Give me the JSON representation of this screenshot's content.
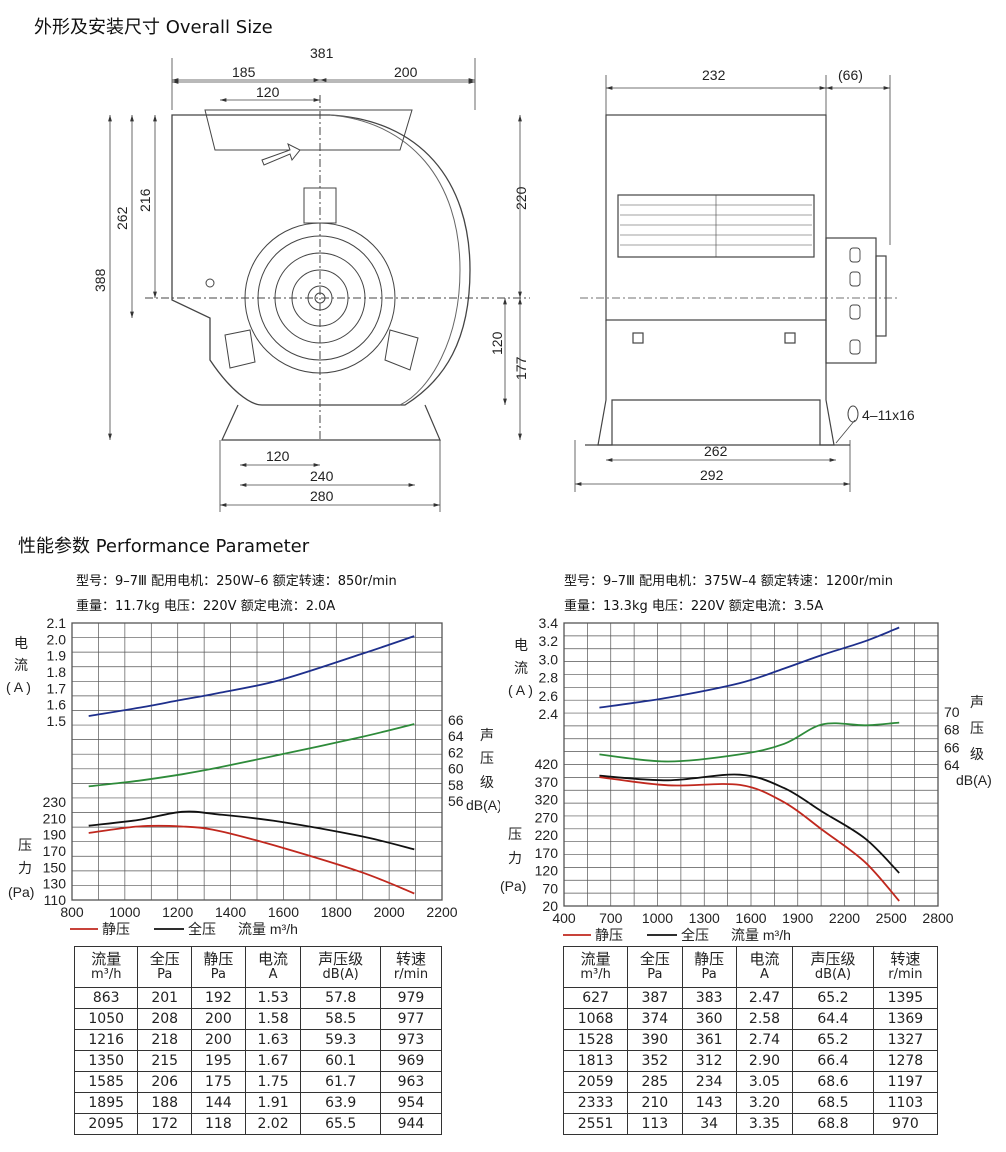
{
  "sections": {
    "overall_title": "外形及安装尺寸  Overall Size",
    "performance_title": "性能参数 Performance Parameter"
  },
  "drawing": {
    "front": {
      "dims": [
        "381",
        "185",
        "200",
        "120",
        "262",
        "216",
        "388",
        "220",
        "120",
        "177",
        "120",
        "240",
        "280"
      ]
    },
    "side": {
      "dims": [
        "232",
        "(66)",
        "262",
        "292"
      ],
      "hole_note": "4–11x16"
    }
  },
  "left": {
    "spec_line1": "型号：9–7Ⅲ  配用电机：250W–6  额定转速：850r/min",
    "spec_line2": "重量：11.7kg  电压：220V  额定电流：2.0A",
    "axis": {
      "current_label": [
        "电",
        "流",
        "( A )"
      ],
      "pressure_label": [
        "压",
        "力",
        "(Pa)"
      ],
      "sound_label": [
        "声",
        "压",
        "级",
        "dB(A)"
      ],
      "current_ticks": [
        "2.1",
        "2.0",
        "1.9",
        "1.8",
        "1.7",
        "1.6",
        "1.5"
      ],
      "sound_ticks": [
        "66",
        "64",
        "62",
        "60",
        "58",
        "56"
      ],
      "pressure_ticks": [
        "230",
        "210",
        "190",
        "170",
        "150",
        "130",
        "110"
      ],
      "x_ticks": [
        "800",
        "1000",
        "1200",
        "1400",
        "1600",
        "1800",
        "2000",
        "2200"
      ]
    },
    "legend": {
      "static": "静压",
      "total": "全压",
      "flow": "流量 m³/h"
    },
    "table": {
      "headers": [
        [
          "流量",
          "m³/h"
        ],
        [
          "全压",
          "Pa"
        ],
        [
          "静压",
          "Pa"
        ],
        [
          "电流",
          "A"
        ],
        [
          "声压级",
          "dB(A)"
        ],
        [
          "转速",
          "r/min"
        ]
      ],
      "rows": [
        [
          "863",
          "201",
          "192",
          "1.53",
          "57.8",
          "979"
        ],
        [
          "1050",
          "208",
          "200",
          "1.58",
          "58.5",
          "977"
        ],
        [
          "1216",
          "218",
          "200",
          "1.63",
          "59.3",
          "973"
        ],
        [
          "1350",
          "215",
          "195",
          "1.67",
          "60.1",
          "969"
        ],
        [
          "1585",
          "206",
          "175",
          "1.75",
          "61.7",
          "963"
        ],
        [
          "1895",
          "188",
          "144",
          "1.91",
          "63.9",
          "954"
        ],
        [
          "2095",
          "172",
          "118",
          "2.02",
          "65.5",
          "944"
        ]
      ]
    }
  },
  "right": {
    "spec_line1": "型号：9–7Ⅲ  配用电机：375W–4  额定转速：1200r/min",
    "spec_line2": "重量：13.3kg  电压：220V  额定电流：3.5A",
    "axis": {
      "current_label": [
        "电",
        "流",
        "( A )"
      ],
      "pressure_label": [
        "压",
        "力",
        "(Pa)"
      ],
      "sound_label": [
        "声",
        "压",
        "级",
        "dB(A)"
      ],
      "current_ticks": [
        "3.4",
        "3.2",
        "3.0",
        "2.8",
        "2.6",
        "2.4"
      ],
      "sound_ticks": [
        "70",
        "68",
        "66",
        "64"
      ],
      "pressure_ticks": [
        "420",
        "370",
        "320",
        "270",
        "220",
        "170",
        "120",
        "70",
        "20"
      ],
      "x_ticks": [
        "400",
        "700",
        "1000",
        "1300",
        "1600",
        "1900",
        "2200",
        "2500",
        "2800"
      ]
    },
    "legend": {
      "static": "静压",
      "total": "全压",
      "flow": "流量 m³/h"
    },
    "table": {
      "headers": [
        [
          "流量",
          "m³/h"
        ],
        [
          "全压",
          "Pa"
        ],
        [
          "静压",
          "Pa"
        ],
        [
          "电流",
          "A"
        ],
        [
          "声压级",
          "dB(A)"
        ],
        [
          "转速",
          "r/min"
        ]
      ],
      "rows": [
        [
          "627",
          "387",
          "383",
          "2.47",
          "65.2",
          "1395"
        ],
        [
          "1068",
          "374",
          "360",
          "2.58",
          "64.4",
          "1369"
        ],
        [
          "1528",
          "390",
          "361",
          "2.74",
          "65.2",
          "1327"
        ],
        [
          "1813",
          "352",
          "312",
          "2.90",
          "66.4",
          "1278"
        ],
        [
          "2059",
          "285",
          "234",
          "3.05",
          "68.6",
          "1197"
        ],
        [
          "2333",
          "210",
          "143",
          "3.20",
          "68.5",
          "1103"
        ],
        [
          "2551",
          "113",
          "34",
          "3.35",
          "68.8",
          "970"
        ]
      ]
    }
  },
  "chart_data": [
    {
      "type": "line",
      "x": [
        863,
        1050,
        1216,
        1350,
        1585,
        1895,
        2095
      ],
      "xlim": [
        800,
        2200
      ],
      "series": [
        {
          "name": "全压",
          "axis": "pressure",
          "color": "#111111",
          "values": [
            201,
            208,
            218,
            215,
            206,
            188,
            172
          ]
        },
        {
          "name": "静压",
          "axis": "pressure",
          "color": "#c0281e",
          "values": [
            192,
            200,
            200,
            195,
            175,
            144,
            118
          ]
        },
        {
          "axis": "current",
          "color": "#1e2f8c",
          "values": [
            1.53,
            1.58,
            1.63,
            1.67,
            1.75,
            1.91,
            2.02
          ]
        },
        {
          "axis": "sound",
          "color": "#2e8b3a",
          "values": [
            57.8,
            58.5,
            59.3,
            60.1,
            61.7,
            63.9,
            65.5
          ]
        }
      ],
      "axes": {
        "current": {
          "lim": [
            1.5,
            2.1
          ]
        },
        "sound": {
          "lim": [
            56,
            66
          ]
        },
        "pressure": {
          "lim": [
            110,
            230
          ]
        }
      }
    },
    {
      "type": "line",
      "x": [
        627,
        1068,
        1528,
        1813,
        2059,
        2333,
        2551
      ],
      "xlim": [
        400,
        2800
      ],
      "series": [
        {
          "name": "全压",
          "axis": "pressure",
          "color": "#111111",
          "values": [
            387,
            374,
            390,
            352,
            285,
            210,
            113
          ]
        },
        {
          "name": "静压",
          "axis": "pressure",
          "color": "#c0281e",
          "values": [
            383,
            360,
            361,
            312,
            234,
            143,
            34
          ]
        },
        {
          "axis": "current",
          "color": "#1e2f8c",
          "values": [
            2.47,
            2.58,
            2.74,
            2.9,
            3.05,
            3.2,
            3.35
          ]
        },
        {
          "axis": "sound",
          "color": "#2e8b3a",
          "values": [
            65.2,
            64.4,
            65.2,
            66.4,
            68.6,
            68.5,
            68.8
          ]
        }
      ],
      "axes": {
        "current": {
          "lim": [
            2.4,
            3.4
          ]
        },
        "sound": {
          "lim": [
            64,
            70
          ]
        },
        "pressure": {
          "lim": [
            20,
            420
          ]
        }
      }
    }
  ]
}
